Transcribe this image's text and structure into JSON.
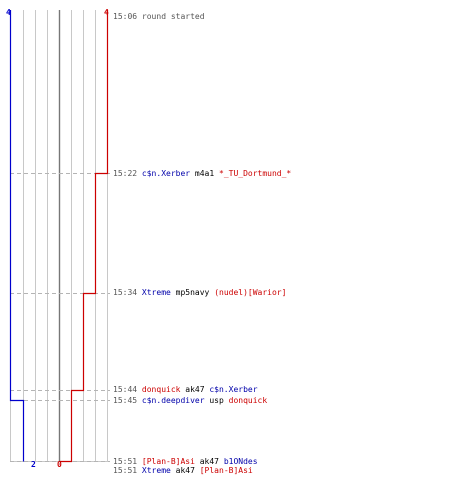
{
  "chart_data": {
    "type": "line",
    "title": "",
    "x_meaning": "round time",
    "y_meaning": "team score step line",
    "score_axis": {
      "blue_top_label": "4",
      "red_top_label": "4",
      "blue_bottom_label": "2",
      "red_bottom_label": "0"
    },
    "series": [
      {
        "team": "blue",
        "color": "#0000cc",
        "steps": [
          {
            "time": "15:06",
            "score": 4
          },
          {
            "time": "15:44",
            "score": 3
          },
          {
            "time": "15:45",
            "score": 2
          },
          {
            "time": "15:51",
            "score": 2
          }
        ]
      },
      {
        "team": "red",
        "color": "#cc0000",
        "steps": [
          {
            "time": "15:06",
            "score": 4
          },
          {
            "time": "15:22",
            "score": 3
          },
          {
            "time": "15:34",
            "score": 2
          },
          {
            "time": "15:44",
            "score": 1
          },
          {
            "time": "15:45",
            "score": 1
          },
          {
            "time": "15:51",
            "score": 0
          }
        ]
      }
    ],
    "grid": true
  },
  "events": [
    {
      "time": "15:06",
      "parts": [
        {
          "text": "round started",
          "style": "sys"
        }
      ]
    },
    {
      "time": "15:22",
      "parts": [
        {
          "text": "c$n.Xerber",
          "style": "blue"
        },
        {
          "text": " m4a1 ",
          "style": "wp"
        },
        {
          "text": "*_TU_Dortmund_*",
          "style": "red"
        }
      ]
    },
    {
      "time": "15:34",
      "parts": [
        {
          "text": "Xtreme",
          "style": "blue"
        },
        {
          "text": " mp5navy ",
          "style": "wp"
        },
        {
          "text": "(nudel)[Warior]",
          "style": "red"
        }
      ]
    },
    {
      "time": "15:44",
      "parts": [
        {
          "text": "donquick",
          "style": "red"
        },
        {
          "text": " ak47 ",
          "style": "wp"
        },
        {
          "text": "c$n.Xerber",
          "style": "blue"
        }
      ]
    },
    {
      "time": "15:45",
      "parts": [
        {
          "text": "c$n.deepdiver",
          "style": "blue"
        },
        {
          "text": " usp ",
          "style": "wp"
        },
        {
          "text": "donquick",
          "style": "red"
        }
      ]
    },
    {
      "time": "15:51",
      "parts": [
        {
          "text": "[Plan-B]Asi",
          "style": "red"
        },
        {
          "text": " ak47 ",
          "style": "wp"
        },
        {
          "text": "b1ONdes",
          "style": "blue"
        }
      ]
    },
    {
      "time": "15:51",
      "parts": [
        {
          "text": "Xtreme",
          "style": "blue"
        },
        {
          "text": " ak47 ",
          "style": "wp"
        },
        {
          "text": "[Plan-B]Asi",
          "style": "red"
        }
      ]
    }
  ]
}
